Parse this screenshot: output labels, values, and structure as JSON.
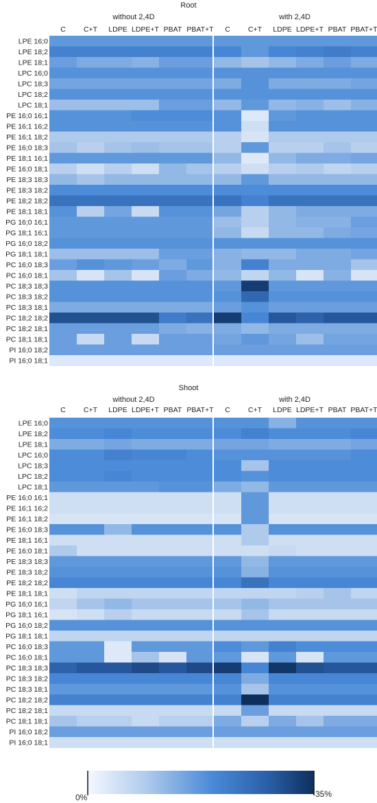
{
  "chart_data": [
    {
      "type": "heatmap",
      "title": "Root",
      "group_labels": [
        "without 2,4D",
        "with 2,4D"
      ],
      "columns": [
        "C",
        "C+T",
        "LDPE",
        "LDPE+T",
        "PBAT",
        "PBAT+T",
        "C",
        "C+T",
        "LDPE",
        "LDPE+T",
        "PBAT",
        "PBAT+T"
      ],
      "rows": [
        "LPE 16;0",
        "LPE 18;2",
        "LPE 18;1",
        "LPC 16;0",
        "LPC 18;3",
        "LPC 18;2",
        "LPC 18;1",
        "PE 16;0 16;1",
        "PE 16;1 16;2",
        "PE 16;1 18;2",
        "PE 16;0 18;3",
        "PE 18;1 16;1",
        "PE 16;0 18;1",
        "PE 18;3 18;3",
        "PE 18;3 18;2",
        "PE 18;2 18;2",
        "PE 18;1 18;1",
        "PG 16;0 16;1",
        "PG 18;1 16;1",
        "PG 16;0 18;2",
        "PG 18;1 18;1",
        "PC 16;0 18;3",
        "PC 16;0 18;1",
        "PC 18;3 18;3",
        "PC 18;3 18;2",
        "PC 18;3 18;1",
        "PC 18;2 18;2",
        "PC 18;2 18;1",
        "PC 18;1 18;1",
        "PI 16;0 18;2",
        "PI 16;0 18;1"
      ],
      "values": [
        [
          17,
          17,
          17,
          17,
          17,
          17,
          17,
          17,
          17,
          17,
          17,
          17
        ],
        [
          21,
          21,
          21,
          21,
          21,
          21,
          20,
          17,
          20,
          21,
          22,
          21
        ],
        [
          16,
          14,
          14,
          13,
          16,
          16,
          12,
          10,
          12,
          14,
          16,
          14
        ],
        [
          18,
          18,
          18,
          18,
          18,
          18,
          18,
          18,
          18,
          18,
          18,
          18
        ],
        [
          15,
          15,
          15,
          15,
          15,
          15,
          14,
          18,
          14,
          14,
          14,
          15
        ],
        [
          18,
          18,
          18,
          18,
          18,
          18,
          18,
          18,
          18,
          18,
          18,
          18
        ],
        [
          11,
          11,
          11,
          11,
          16,
          16,
          12,
          17,
          12,
          13,
          11,
          13
        ],
        [
          18,
          18,
          18,
          19,
          19,
          19,
          18,
          3,
          17,
          18,
          18,
          18
        ],
        [
          18,
          18,
          18,
          18,
          18,
          18,
          18,
          5,
          18,
          18,
          18,
          18
        ],
        [
          9,
          9,
          9,
          9,
          9,
          9,
          8,
          4,
          9,
          9,
          9,
          9
        ],
        [
          10,
          8,
          10,
          11,
          10,
          10,
          8,
          17,
          8,
          8,
          10,
          8
        ],
        [
          17,
          17,
          17,
          17,
          17,
          17,
          12,
          3,
          12,
          14,
          14,
          15
        ],
        [
          8,
          5,
          8,
          5,
          12,
          10,
          8,
          5,
          8,
          9,
          7,
          8
        ],
        [
          12,
          10,
          12,
          12,
          12,
          12,
          12,
          17,
          12,
          12,
          12,
          12
        ],
        [
          19,
          19,
          19,
          19,
          19,
          19,
          19,
          19,
          19,
          19,
          19,
          19
        ],
        [
          24,
          24,
          24,
          24,
          24,
          24,
          24,
          21,
          24,
          24,
          24,
          24
        ],
        [
          18,
          8,
          15,
          6,
          18,
          18,
          15,
          8,
          12,
          14,
          14,
          14
        ],
        [
          17,
          17,
          17,
          17,
          17,
          17,
          11,
          8,
          12,
          13,
          13,
          16
        ],
        [
          17,
          17,
          17,
          17,
          17,
          17,
          12,
          6,
          12,
          12,
          14,
          15
        ],
        [
          18,
          18,
          18,
          18,
          18,
          18,
          18,
          18,
          18,
          18,
          18,
          18
        ],
        [
          11,
          11,
          11,
          11,
          16,
          16,
          13,
          12,
          12,
          14,
          14,
          15
        ],
        [
          16,
          18,
          17,
          16,
          14,
          17,
          13,
          21,
          14,
          14,
          14,
          10
        ],
        [
          10,
          4,
          10,
          4,
          16,
          14,
          12,
          7,
          12,
          4,
          13,
          4
        ],
        [
          18,
          18,
          18,
          18,
          18,
          18,
          17,
          33,
          17,
          17,
          17,
          17
        ],
        [
          18,
          18,
          18,
          18,
          18,
          18,
          18,
          26,
          18,
          18,
          18,
          18
        ],
        [
          14,
          14,
          14,
          14,
          14,
          14,
          16,
          18,
          16,
          16,
          16,
          16
        ],
        [
          30,
          30,
          30,
          30,
          22,
          24,
          33,
          20,
          29,
          27,
          29,
          29
        ],
        [
          16,
          16,
          16,
          16,
          14,
          13,
          14,
          12,
          14,
          14,
          14,
          14
        ],
        [
          16,
          6,
          16,
          6,
          16,
          16,
          15,
          17,
          15,
          11,
          15,
          15
        ],
        [
          16,
          16,
          16,
          16,
          16,
          16,
          16,
          16,
          16,
          16,
          16,
          16
        ],
        [
          3,
          3,
          3,
          3,
          3,
          3,
          3,
          3,
          3,
          3,
          3,
          3
        ]
      ]
    },
    {
      "type": "heatmap",
      "title": "Shoot",
      "group_labels": [
        "without 2,4D",
        "with 2,4D"
      ],
      "columns": [
        "C",
        "C+T",
        "LDPE",
        "LDPE+T",
        "PBAT",
        "PBAT+T",
        "C",
        "C+T",
        "LDPE",
        "LDPE+T",
        "PBAT",
        "PBAT+T"
      ],
      "rows": [
        "LPE 16;0",
        "LPE 18;2",
        "LPE 18;1",
        "LPC 16;0",
        "LPC 18;3",
        "LPC 18;2",
        "LPC 18;1",
        "PE 16;0 16;1",
        "PE 16;1 16;2",
        "PE 16;1 18;2",
        "PE 16;0 18;3",
        "PE 18;1 16;1",
        "PE 16;0 18;1",
        "PE 18;3 18;3",
        "PE 18;3 18;2",
        "PE 18;2 18;2",
        "PE 18;1 18;1",
        "PG 16;0 16;1",
        "PG 18;1 16;1",
        "PG 16;0 18;2",
        "PG 18;1 18;1",
        "PC 16;0 18;3",
        "PC 16;0 18;1",
        "PC 18;3 18;3",
        "PC 18;3 18;2",
        "PC 18;3 18;1",
        "PC 18;2 18;2",
        "PC 18;2 18;1",
        "PC 18;1 18;1",
        "PI 16;0 18;2",
        "PI 16;0 18;1"
      ],
      "values": [
        [
          18,
          18,
          18,
          18,
          18,
          18,
          18,
          18,
          13,
          18,
          18,
          18
        ],
        [
          19,
          19,
          20,
          19,
          19,
          19,
          19,
          21,
          19,
          19,
          19,
          20
        ],
        [
          14,
          14,
          15,
          14,
          14,
          14,
          15,
          15,
          14,
          14,
          14,
          15
        ],
        [
          19,
          19,
          21,
          20,
          20,
          19,
          18,
          18,
          18,
          18,
          18,
          19
        ],
        [
          19,
          19,
          19,
          19,
          19,
          19,
          19,
          10,
          19,
          19,
          19,
          19
        ],
        [
          19,
          19,
          20,
          19,
          19,
          19,
          19,
          18,
          19,
          19,
          19,
          19
        ],
        [
          17,
          17,
          17,
          17,
          18,
          18,
          14,
          12,
          17,
          17,
          17,
          17
        ],
        [
          5,
          5,
          5,
          5,
          5,
          5,
          5,
          17,
          5,
          5,
          5,
          5
        ],
        [
          5,
          5,
          5,
          5,
          5,
          5,
          5,
          17,
          5,
          5,
          5,
          5
        ],
        [
          4,
          4,
          4,
          4,
          4,
          4,
          4,
          17,
          4,
          4,
          4,
          4
        ],
        [
          18,
          18,
          12,
          18,
          18,
          18,
          18,
          9,
          18,
          18,
          18,
          18
        ],
        [
          5,
          5,
          5,
          5,
          5,
          5,
          5,
          9,
          5,
          5,
          5,
          5
        ],
        [
          9,
          5,
          5,
          5,
          5,
          5,
          5,
          5,
          6,
          5,
          5,
          5
        ],
        [
          17,
          17,
          17,
          17,
          17,
          17,
          17,
          12,
          17,
          17,
          17,
          17
        ],
        [
          18,
          18,
          18,
          18,
          18,
          18,
          18,
          13,
          18,
          18,
          18,
          18
        ],
        [
          20,
          20,
          20,
          20,
          20,
          20,
          20,
          24,
          20,
          20,
          20,
          20
        ],
        [
          5,
          7,
          7,
          7,
          7,
          7,
          7,
          7,
          7,
          8,
          10,
          7
        ],
        [
          7,
          10,
          12,
          10,
          10,
          10,
          10,
          12,
          10,
          10,
          10,
          10
        ],
        [
          4,
          5,
          8,
          6,
          6,
          6,
          6,
          10,
          6,
          6,
          6,
          6
        ],
        [
          18,
          18,
          18,
          18,
          18,
          18,
          18,
          18,
          18,
          18,
          18,
          18
        ],
        [
          7,
          7,
          7,
          7,
          7,
          7,
          7,
          7,
          7,
          7,
          7,
          7
        ],
        [
          17,
          17,
          3,
          17,
          17,
          17,
          19,
          17,
          21,
          19,
          19,
          19
        ],
        [
          17,
          17,
          3,
          10,
          4,
          17,
          17,
          4,
          17,
          4,
          17,
          17
        ],
        [
          27,
          29,
          29,
          31,
          29,
          31,
          33,
          20,
          34,
          30,
          29,
          29
        ],
        [
          20,
          20,
          20,
          20,
          20,
          20,
          20,
          14,
          20,
          20,
          20,
          20
        ],
        [
          17,
          17,
          17,
          17,
          17,
          17,
          18,
          10,
          18,
          18,
          18,
          18
        ],
        [
          21,
          21,
          21,
          21,
          21,
          21,
          21,
          35,
          21,
          21,
          21,
          21
        ],
        [
          6,
          6,
          6,
          6,
          6,
          6,
          6,
          16,
          6,
          6,
          6,
          6
        ],
        [
          10,
          8,
          8,
          6,
          8,
          8,
          14,
          8,
          14,
          10,
          14,
          14
        ],
        [
          16,
          16,
          16,
          16,
          16,
          16,
          16,
          16,
          16,
          16,
          16,
          16
        ],
        [
          5,
          5,
          5,
          5,
          5,
          5,
          5,
          5,
          5,
          5,
          5,
          5
        ]
      ]
    }
  ],
  "colorbar": {
    "min": 0,
    "max": 35,
    "min_label": "0%",
    "max_label": "35%",
    "low_color": "#f4f8ff",
    "high_color": "#0d2f5e"
  },
  "colors": {
    "separator": "#ffffff",
    "text": "#222222"
  }
}
